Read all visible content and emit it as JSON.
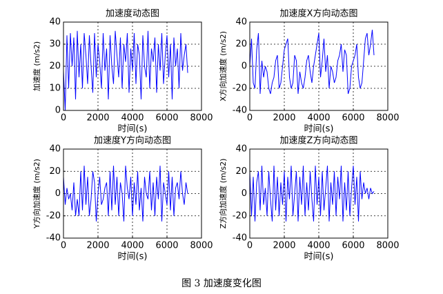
{
  "chart_data": [
    {
      "type": "line",
      "title": "加速度动态图",
      "xlabel": "时间(s)",
      "ylabel": "加速度 (m/s2)",
      "color": "#0000ff",
      "grid": true,
      "xlim": [
        0,
        8000
      ],
      "xticks": [
        0,
        2000,
        4000,
        6000,
        8000
      ],
      "ylim": [
        0,
        40
      ],
      "yticks": [
        0,
        10,
        20,
        30,
        40
      ],
      "x": [
        0,
        100,
        200,
        300,
        400,
        500,
        600,
        700,
        800,
        900,
        1000,
        1100,
        1200,
        1300,
        1400,
        1500,
        1600,
        1700,
        1800,
        1900,
        2000,
        2100,
        2200,
        2300,
        2400,
        2500,
        2600,
        2700,
        2800,
        2900,
        3000,
        3100,
        3200,
        3300,
        3400,
        3500,
        3600,
        3700,
        3800,
        3900,
        4000,
        4100,
        4200,
        4300,
        4400,
        4500,
        4600,
        4700,
        4800,
        4900,
        5000,
        5100,
        5200,
        5300,
        5400,
        5500,
        5600,
        5700,
        5800,
        5900,
        6000,
        6100,
        6200,
        6300,
        6400,
        6500,
        6600,
        6700,
        6800,
        6900,
        7000,
        7100,
        7200
      ],
      "values": [
        18,
        0,
        34,
        10,
        35,
        20,
        33,
        5,
        36,
        15,
        30,
        10,
        35,
        25,
        12,
        34,
        20,
        8,
        35,
        15,
        30,
        22,
        10,
        35,
        18,
        28,
        5,
        34,
        20,
        12,
        36,
        25,
        15,
        33,
        10,
        30,
        22,
        35,
        8,
        28,
        18,
        35,
        12,
        30,
        25,
        5,
        34,
        20,
        15,
        36,
        10,
        28,
        22,
        33,
        8,
        30,
        18,
        35,
        12,
        25,
        34,
        15,
        30,
        5,
        33,
        20,
        28,
        10,
        35,
        18,
        25,
        30,
        17
      ]
    },
    {
      "type": "line",
      "title": "加速度X方向动态图",
      "xlabel": "时间(s)",
      "ylabel": "X方向加速度 (m/s2)",
      "color": "#0000ff",
      "grid": true,
      "xlim": [
        0,
        8000
      ],
      "xticks": [
        0,
        2000,
        4000,
        6000,
        8000
      ],
      "ylim": [
        -40,
        40
      ],
      "yticks": [
        -40,
        -20,
        0,
        20,
        40
      ],
      "x": [
        0,
        100,
        200,
        300,
        400,
        500,
        600,
        700,
        800,
        900,
        1000,
        1100,
        1200,
        1300,
        1400,
        1500,
        1600,
        1700,
        1800,
        1900,
        2000,
        2100,
        2200,
        2300,
        2400,
        2500,
        2600,
        2700,
        2800,
        2900,
        3000,
        3100,
        3200,
        3300,
        3400,
        3500,
        3600,
        3700,
        3800,
        3900,
        4000,
        4100,
        4200,
        4300,
        4400,
        4500,
        4600,
        4700,
        4800,
        4900,
        5000,
        5100,
        5200,
        5300,
        5400,
        5500,
        5600,
        5700,
        5800,
        5900,
        6000,
        6100,
        6200,
        6300,
        6400,
        6500,
        6600,
        6700,
        6800,
        6900,
        7000,
        7100,
        7200
      ],
      "values": [
        0,
        25,
        -15,
        -20,
        15,
        30,
        -25,
        5,
        -10,
        0,
        -5,
        -20,
        -25,
        -15,
        -10,
        5,
        10,
        -20,
        -15,
        0,
        15,
        20,
        25,
        -10,
        -20,
        -15,
        10,
        5,
        -25,
        -5,
        -15,
        -20,
        -10,
        5,
        10,
        -5,
        -15,
        0,
        10,
        20,
        30,
        -10,
        5,
        25,
        -5,
        10,
        -20,
        0,
        -5,
        -15,
        -10,
        5,
        10,
        20,
        -5,
        15,
        10,
        -25,
        -20,
        0,
        5,
        10,
        20,
        -10,
        -20,
        -15,
        5,
        25,
        30,
        10,
        20,
        33,
        10
      ]
    },
    {
      "type": "line",
      "title": "加速度Y方向动态图",
      "xlabel": "时间(s)",
      "ylabel": "Y方向加速度 (m/s2)",
      "color": "#0000ff",
      "grid": true,
      "xlim": [
        0,
        8000
      ],
      "xticks": [
        0,
        2000,
        4000,
        6000,
        8000
      ],
      "ylim": [
        -40,
        40
      ],
      "yticks": [
        -40,
        -20,
        0,
        20,
        40
      ],
      "x": [
        0,
        100,
        200,
        300,
        400,
        500,
        600,
        700,
        800,
        900,
        1000,
        1100,
        1200,
        1300,
        1400,
        1500,
        1600,
        1700,
        1800,
        1900,
        2000,
        2100,
        2200,
        2300,
        2400,
        2500,
        2600,
        2700,
        2800,
        2900,
        3000,
        3100,
        3200,
        3300,
        3400,
        3500,
        3600,
        3700,
        3800,
        3900,
        4000,
        4100,
        4200,
        4300,
        4400,
        4500,
        4600,
        4700,
        4800,
        4900,
        5000,
        5100,
        5200,
        5300,
        5400,
        5500,
        5600,
        5700,
        5800,
        5900,
        6000,
        6100,
        6200,
        6300,
        6400,
        6500,
        6600,
        6700,
        6800,
        6900,
        7000,
        7100,
        7200
      ],
      "values": [
        15,
        -10,
        5,
        -5,
        0,
        -15,
        10,
        -20,
        -5,
        -20,
        20,
        -15,
        25,
        -10,
        15,
        -20,
        -5,
        20,
        10,
        -25,
        0,
        15,
        -10,
        -5,
        5,
        10,
        -20,
        20,
        -15,
        25,
        -10,
        15,
        -20,
        10,
        0,
        -25,
        25,
        5,
        -5,
        15,
        -20,
        10,
        -10,
        20,
        -15,
        5,
        -25,
        15,
        0,
        -5,
        20,
        -15,
        10,
        -20,
        15,
        -5,
        25,
        -25,
        10,
        0,
        -10,
        20,
        -15,
        15,
        -20,
        5,
        10,
        -5,
        20,
        0,
        -10,
        10,
        0
      ]
    },
    {
      "type": "line",
      "title": "加速度Z方向动态图",
      "xlabel": "时间(s)",
      "ylabel": "Z方向加速度 (m/s2)",
      "color": "#0000ff",
      "grid": true,
      "xlim": [
        0,
        8000
      ],
      "xticks": [
        0,
        2000,
        4000,
        6000,
        8000
      ],
      "ylim": [
        -40,
        40
      ],
      "yticks": [
        -40,
        -20,
        0,
        20,
        40
      ],
      "x": [
        0,
        100,
        200,
        300,
        400,
        500,
        600,
        700,
        800,
        900,
        1000,
        1100,
        1200,
        1300,
        1400,
        1500,
        1600,
        1700,
        1800,
        1900,
        2000,
        2100,
        2200,
        2300,
        2400,
        2500,
        2600,
        2700,
        2800,
        2900,
        3000,
        3100,
        3200,
        3300,
        3400,
        3500,
        3600,
        3700,
        3800,
        3900,
        4000,
        4100,
        4200,
        4300,
        4400,
        4500,
        4600,
        4700,
        4800,
        4900,
        5000,
        5100,
        5200,
        5300,
        5400,
        5500,
        5600,
        5700,
        5800,
        5900,
        6000,
        6100,
        6200,
        6300,
        6400,
        6500,
        6600,
        6700,
        6800,
        6900,
        7000,
        7100,
        7200
      ],
      "values": [
        20,
        -20,
        15,
        -25,
        10,
        20,
        -15,
        25,
        -10,
        5,
        -20,
        20,
        -5,
        -25,
        25,
        -15,
        15,
        -20,
        10,
        -10,
        20,
        -25,
        15,
        -5,
        25,
        -20,
        0,
        20,
        -25,
        15,
        -10,
        25,
        -20,
        10,
        -15,
        20,
        -5,
        -25,
        25,
        -10,
        15,
        -20,
        20,
        -15,
        5,
        25,
        -25,
        10,
        -10,
        20,
        -20,
        15,
        -5,
        25,
        -25,
        10,
        -15,
        20,
        -20,
        5,
        25,
        -10,
        15,
        -25,
        20,
        -5,
        10,
        0,
        5,
        -5,
        5,
        0,
        2
      ]
    }
  ],
  "caption": "图 3  加速度变化图"
}
